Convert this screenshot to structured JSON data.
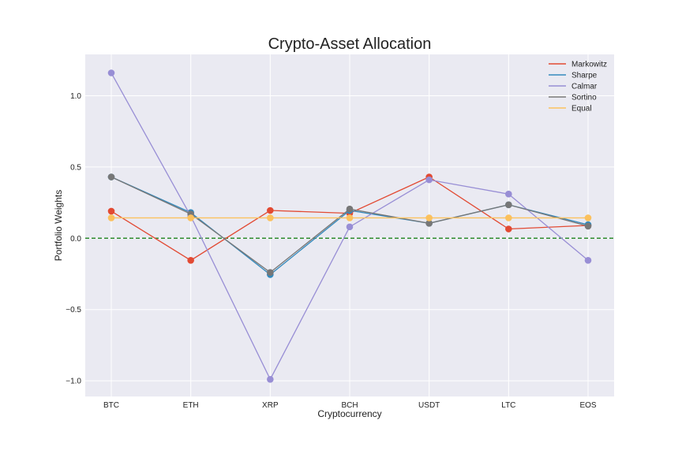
{
  "chart_data": {
    "type": "line",
    "title": "Crypto-Asset Allocation",
    "xlabel": "Cryptocurrency",
    "ylabel": "Portfolio Weights",
    "categories": [
      "BTC",
      "ETH",
      "XRP",
      "BCH",
      "USDT",
      "LTC",
      "EOS"
    ],
    "ylim": [
      -1.11,
      1.29
    ],
    "yticks": [
      1.0,
      0.5,
      0.0,
      -0.5,
      -1.0
    ],
    "ytick_labels": [
      "1.0",
      "0.5",
      "0.0",
      "−0.5",
      "−1.0"
    ],
    "grid": true,
    "legend_position": "top-right",
    "reference_line": {
      "y": 0.0,
      "style": "dashed",
      "color": "#2e8b2e"
    },
    "series": [
      {
        "name": "Markowitz",
        "color": "#e24a33",
        "values": [
          0.19,
          -0.155,
          0.195,
          0.175,
          0.43,
          0.065,
          0.09
        ]
      },
      {
        "name": "Sharpe",
        "color": "#348abd",
        "values": [
          0.43,
          0.18,
          -0.255,
          0.195,
          0.105,
          0.235,
          0.095
        ]
      },
      {
        "name": "Calmar",
        "color": "#988ed5",
        "values": [
          1.16,
          0.155,
          -0.99,
          0.08,
          0.41,
          0.31,
          -0.155
        ]
      },
      {
        "name": "Sortino",
        "color": "#777777",
        "values": [
          0.43,
          0.17,
          -0.24,
          0.205,
          0.105,
          0.235,
          0.085
        ]
      },
      {
        "name": "Equal",
        "color": "#fbc15e",
        "values": [
          0.143,
          0.143,
          0.143,
          0.143,
          0.143,
          0.143,
          0.143
        ]
      }
    ]
  }
}
